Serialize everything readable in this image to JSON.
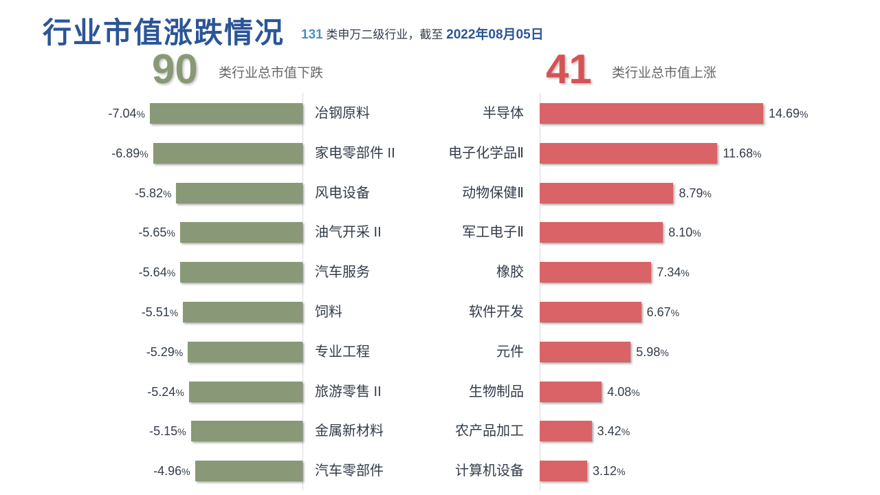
{
  "header": {
    "title": "行业市值涨跌情况",
    "subtitle_count": "131",
    "subtitle_text": " 类申万二级行业，截至 ",
    "subtitle_date": "2022年08月05日"
  },
  "summary": {
    "down_count": "90",
    "down_caption": "类行业总市值下跌",
    "up_count": "41",
    "up_caption": "类行业总市值上涨"
  },
  "colors": {
    "title": "#2b5597",
    "down_bar": "#899876",
    "up_bar": "#d96366"
  },
  "chart_data": [
    {
      "type": "bar",
      "orientation": "horizontal",
      "categories": [
        "冶钢原料",
        "家电零部件 II",
        "风电设备",
        "油气开采 II",
        "汽车服务",
        "饲料",
        "专业工程",
        "旅游零售 II",
        "金属新材料",
        "汽车零部件"
      ],
      "values": [
        -7.04,
        -6.89,
        -5.82,
        -5.65,
        -5.64,
        -5.51,
        -5.29,
        -5.24,
        -5.15,
        -4.96
      ],
      "labels": [
        "-7.04",
        "-6.89",
        "-5.82",
        "-5.65",
        "-5.64",
        "-5.51",
        "-5.29",
        "-5.24",
        "-5.15",
        "-4.96"
      ],
      "unit": "%",
      "color": "#899876",
      "grid": false
    },
    {
      "type": "bar",
      "orientation": "horizontal",
      "categories": [
        "半导体",
        "电子化学品Ⅱ",
        "动物保健Ⅱ",
        "军工电子Ⅱ",
        "橡胶",
        "软件开发",
        "元件",
        "生物制品",
        "农产品加工",
        "计算机设备"
      ],
      "values": [
        14.69,
        11.68,
        8.79,
        8.1,
        7.34,
        6.67,
        5.98,
        4.08,
        3.42,
        3.12
      ],
      "labels": [
        "14.69",
        "11.68",
        "8.79",
        "8.10",
        "7.34",
        "6.67",
        "5.98",
        "4.08",
        "3.42",
        "3.12"
      ],
      "unit": "%",
      "color": "#d96366",
      "grid": false
    }
  ]
}
